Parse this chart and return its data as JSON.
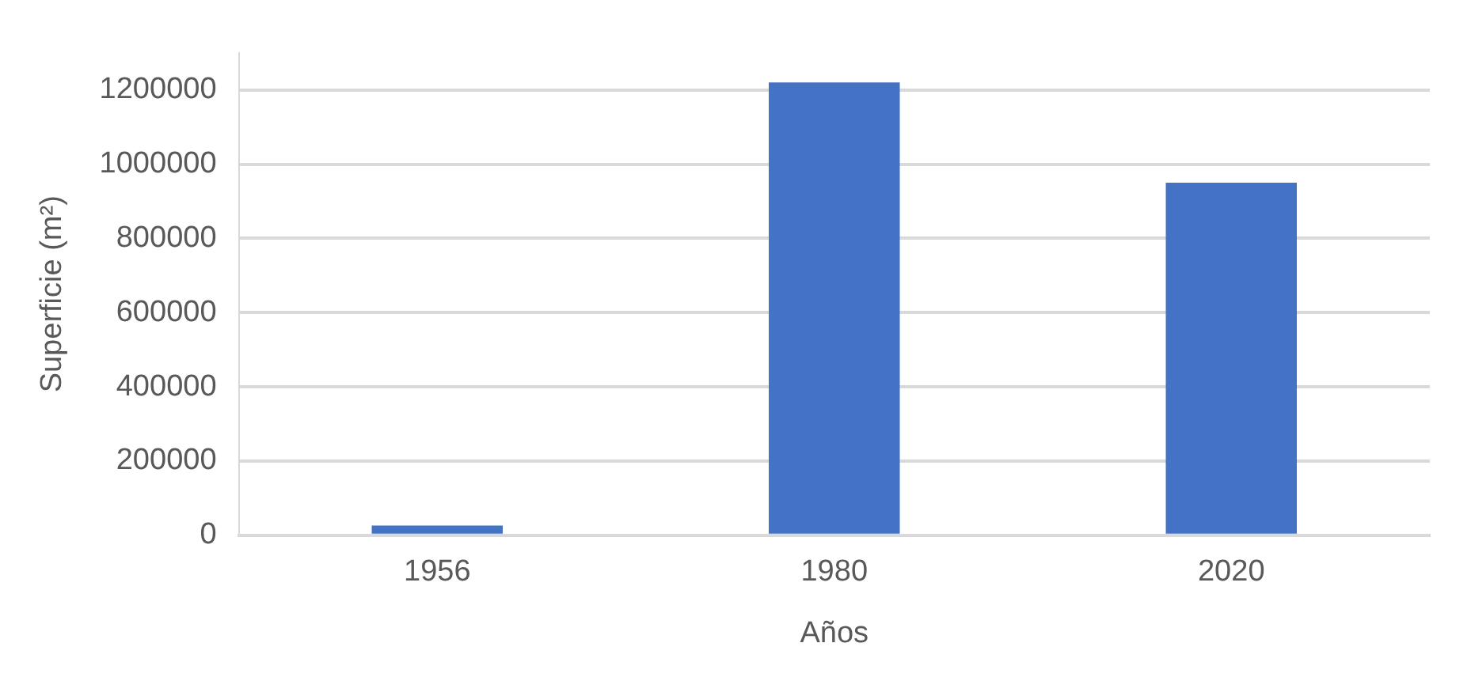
{
  "chart_data": {
    "type": "bar",
    "xlabel": "Años",
    "ylabel": "Superficie (m²)",
    "categories": [
      "1956",
      "1980",
      "2020"
    ],
    "values": [
      26000,
      1220000,
      950000
    ],
    "color": "#4472c4",
    "ylim": [
      0,
      1300000
    ],
    "yticks": [
      0,
      200000,
      400000,
      600000,
      800000,
      1000000,
      1200000
    ],
    "grid": "y",
    "legend": false
  }
}
